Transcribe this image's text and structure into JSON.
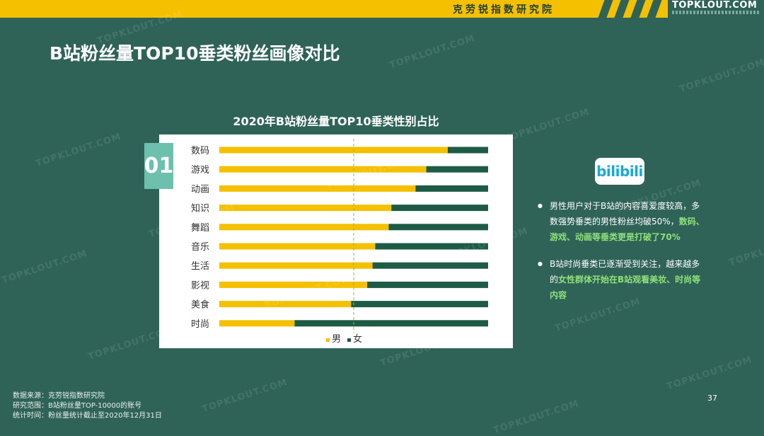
{
  "header": {
    "org": "克劳锐指数研究院",
    "brand": "TOPKLOUT.COM"
  },
  "page_title": "B站粉丝量TOP10垂类粉丝画像对比",
  "badge": "01",
  "bili_logo": "bilibili",
  "notes": [
    {
      "text": "男性用户对于B站的内容喜爱度较高，多数强势垂类的男性粉丝均破50%，",
      "highlight": "数码、游戏、动画等垂类更是打破了70%"
    },
    {
      "text": "B站时尚垂类已逐渐受到关注，越来越多的",
      "highlight": "女性群体开始在B站观看美妆、时尚等内容"
    }
  ],
  "footer": {
    "source_label": "数据来源：",
    "source": "克劳锐指数研究院",
    "scope_label": "研究范围：",
    "scope": "B站粉丝量TOP-10000的账号",
    "time_label": "统计时间：",
    "time": "粉丝量统计截止至2020年12月31日"
  },
  "page_number": "37",
  "watermark": "TOPKLOUT.COM",
  "colors": {
    "male": "#f5c000",
    "female": "#1e5b45",
    "reference_line": "#7bc043"
  },
  "chart_data": {
    "type": "bar",
    "orientation": "horizontal",
    "stacked": true,
    "title": "2020年B站粉丝量TOP10垂类性别占比",
    "categories": [
      "数码",
      "游戏",
      "动画",
      "知识",
      "舞蹈",
      "音乐",
      "生活",
      "影视",
      "美食",
      "时尚"
    ],
    "series": [
      {
        "name": "男",
        "values": [
          85,
          77,
          73,
          64,
          63,
          58,
          57,
          55,
          49,
          28
        ]
      },
      {
        "name": "女",
        "values": [
          15,
          23,
          27,
          36,
          37,
          42,
          43,
          45,
          51,
          72
        ]
      }
    ],
    "xlim": [
      0,
      100
    ],
    "reference_line": 50,
    "legend_position": "bottom",
    "grid": false
  }
}
